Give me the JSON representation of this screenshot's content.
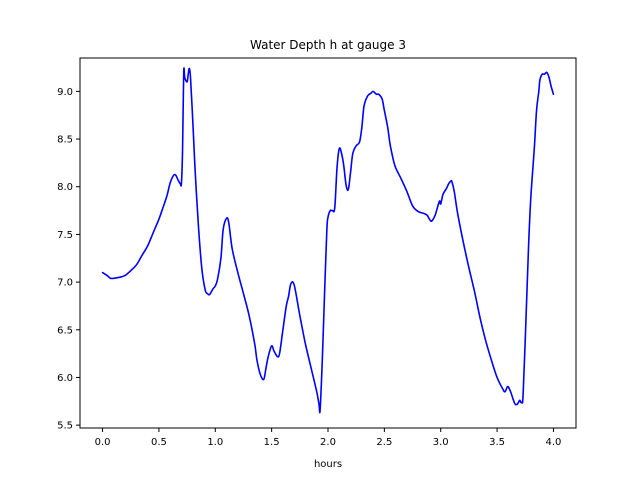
{
  "chart_data": {
    "type": "line",
    "title": "Water Depth h at gauge 3",
    "xlabel": "hours",
    "ylabel": "",
    "xlim": [
      -0.2,
      4.2
    ],
    "ylim": [
      5.47,
      9.35
    ],
    "xticks": [
      0.0,
      0.5,
      1.0,
      1.5,
      2.0,
      2.5,
      3.0,
      3.5,
      4.0
    ],
    "xtick_labels": [
      "0.0",
      "0.5",
      "1.0",
      "1.5",
      "2.0",
      "2.5",
      "3.0",
      "3.5",
      "4.0"
    ],
    "yticks": [
      5.5,
      6.0,
      6.5,
      7.0,
      7.5,
      8.0,
      8.5,
      9.0
    ],
    "ytick_labels": [
      "5.5",
      "6.0",
      "6.5",
      "7.0",
      "7.5",
      "8.0",
      "8.5",
      "9.0"
    ],
    "grid": false,
    "colors": {
      "line": "#0000ff",
      "axes": "#000000",
      "background": "#ffffff"
    },
    "series": [
      {
        "name": "",
        "x": [
          0.0,
          0.04,
          0.07,
          0.1,
          0.15,
          0.2,
          0.25,
          0.3,
          0.35,
          0.4,
          0.45,
          0.5,
          0.53,
          0.57,
          0.6,
          0.63,
          0.65,
          0.67,
          0.69,
          0.7,
          0.71,
          0.72,
          0.73,
          0.75,
          0.76,
          0.77,
          0.78,
          0.8,
          0.82,
          0.85,
          0.88,
          0.91,
          0.93,
          0.95,
          0.98,
          1.0,
          1.02,
          1.05,
          1.07,
          1.1,
          1.12,
          1.15,
          1.2,
          1.25,
          1.3,
          1.35,
          1.37,
          1.4,
          1.43,
          1.45,
          1.47,
          1.5,
          1.52,
          1.55,
          1.57,
          1.6,
          1.63,
          1.65,
          1.67,
          1.7,
          1.75,
          1.8,
          1.85,
          1.9,
          1.92,
          1.93,
          1.95,
          1.97,
          1.99,
          2.0,
          2.02,
          2.04,
          2.06,
          2.08,
          2.1,
          2.12,
          2.14,
          2.16,
          2.18,
          2.2,
          2.22,
          2.25,
          2.28,
          2.3,
          2.32,
          2.35,
          2.38,
          2.4,
          2.43,
          2.45,
          2.48,
          2.5,
          2.53,
          2.55,
          2.58,
          2.6,
          2.65,
          2.7,
          2.75,
          2.8,
          2.85,
          2.88,
          2.9,
          2.92,
          2.95,
          2.97,
          2.99,
          3.0,
          3.02,
          3.05,
          3.07,
          3.09,
          3.1,
          3.12,
          3.15,
          3.2,
          3.25,
          3.3,
          3.35,
          3.4,
          3.45,
          3.5,
          3.55,
          3.57,
          3.59,
          3.6,
          3.62,
          3.64,
          3.66,
          3.68,
          3.7,
          3.71,
          3.72,
          3.73,
          3.75,
          3.78,
          3.8,
          3.83,
          3.85,
          3.87,
          3.88,
          3.9,
          3.92,
          3.94,
          3.96,
          3.98,
          4.0
        ],
        "y": [
          7.1,
          7.07,
          7.04,
          7.04,
          7.05,
          7.07,
          7.12,
          7.18,
          7.28,
          7.38,
          7.52,
          7.66,
          7.76,
          7.9,
          8.04,
          8.12,
          8.12,
          8.07,
          8.03,
          8.04,
          8.4,
          9.2,
          9.14,
          9.1,
          9.18,
          9.24,
          9.15,
          8.7,
          8.2,
          7.6,
          7.15,
          6.92,
          6.88,
          6.87,
          6.93,
          6.96,
          7.03,
          7.25,
          7.55,
          7.67,
          7.62,
          7.35,
          7.1,
          6.88,
          6.65,
          6.35,
          6.18,
          6.03,
          5.98,
          6.1,
          6.22,
          6.33,
          6.28,
          6.22,
          6.25,
          6.5,
          6.75,
          6.85,
          6.98,
          6.97,
          6.65,
          6.35,
          6.1,
          5.85,
          5.72,
          5.66,
          6.2,
          6.9,
          7.55,
          7.68,
          7.75,
          7.75,
          7.78,
          8.2,
          8.4,
          8.35,
          8.22,
          8.02,
          7.97,
          8.15,
          8.35,
          8.43,
          8.47,
          8.62,
          8.85,
          8.95,
          8.98,
          9.0,
          8.97,
          8.97,
          8.92,
          8.8,
          8.62,
          8.45,
          8.28,
          8.2,
          8.08,
          7.95,
          7.8,
          7.74,
          7.72,
          7.7,
          7.66,
          7.64,
          7.7,
          7.78,
          7.85,
          7.82,
          7.92,
          7.98,
          8.03,
          8.06,
          8.05,
          7.95,
          7.72,
          7.42,
          7.15,
          6.9,
          6.62,
          6.38,
          6.18,
          6.0,
          5.88,
          5.85,
          5.9,
          5.9,
          5.85,
          5.78,
          5.72,
          5.72,
          5.76,
          5.74,
          5.74,
          5.8,
          6.4,
          7.4,
          7.9,
          8.4,
          8.8,
          9.0,
          9.12,
          9.18,
          9.18,
          9.2,
          9.15,
          9.05,
          8.97
        ]
      }
    ]
  }
}
